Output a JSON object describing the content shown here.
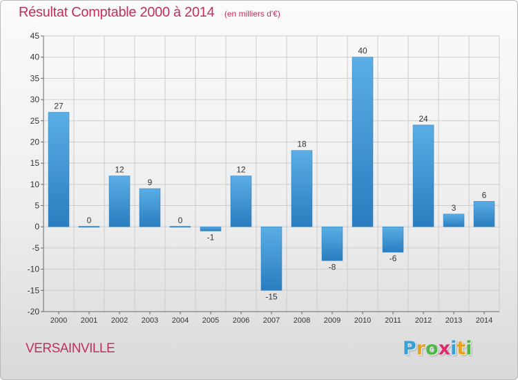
{
  "header": {
    "title": "Résultat Comptable 2000 à 2014",
    "subtitle": "(en milliers d'€)"
  },
  "footer": {
    "commune": "VERSAINVILLE",
    "logo_letters": [
      "P",
      "r",
      "o",
      "x",
      "i",
      "t",
      "i"
    ],
    "logo_colors": [
      "#3aa0d8",
      "#e8a21a",
      "#4db848",
      "#e02b6a",
      "#3aa0d8",
      "#e8a21a",
      "#4db848"
    ]
  },
  "colors": {
    "bar_light": "#5aaee5",
    "bar_dark": "#2a7dbf",
    "title": "#c0305a",
    "grid": "#cccccc",
    "axis_text": "#333333"
  },
  "chart_data": {
    "type": "bar",
    "title": "Résultat Comptable 2000 à 2014",
    "subtitle": "(en milliers d'€)",
    "categories": [
      "2000",
      "2001",
      "2002",
      "2003",
      "2004",
      "2005",
      "2006",
      "2007",
      "2008",
      "2009",
      "2010",
      "2011",
      "2012",
      "2013",
      "2014"
    ],
    "values": [
      27,
      0,
      12,
      9,
      0,
      -1,
      12,
      -15,
      18,
      -8,
      40,
      -6,
      24,
      3,
      6
    ],
    "labels": [
      "27",
      "0",
      "12",
      "9",
      "0",
      "-1",
      "12",
      "-15",
      "18",
      "-8",
      "40",
      "-6",
      "24",
      "3",
      "6"
    ],
    "yticks": [
      45,
      40,
      35,
      30,
      25,
      20,
      15,
      10,
      5,
      0,
      -5,
      -10,
      -15,
      -20
    ],
    "ylim": [
      -20,
      45
    ],
    "xlabel": "",
    "ylabel": "",
    "grid": true
  }
}
